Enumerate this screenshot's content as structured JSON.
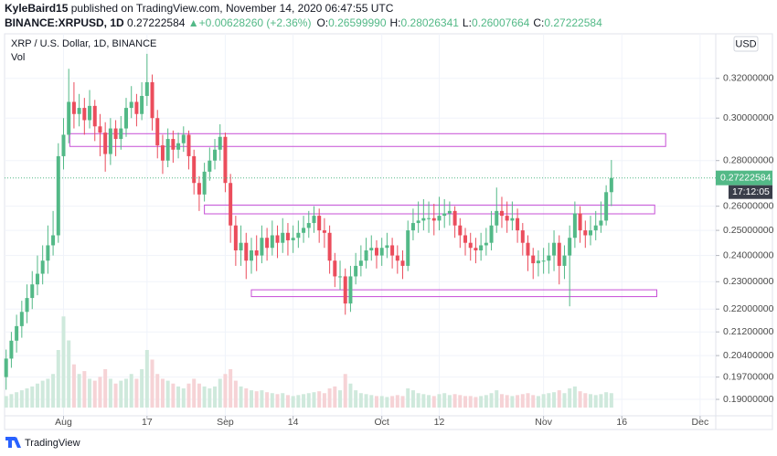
{
  "header": {
    "author": "KyleBaird15",
    "published": "published on TradingView.com, November 14, 2020 06:47:55 UTC",
    "symbol": "BINANCE:XRPUSD, 1D",
    "last": "0.27222584",
    "arrow": "▲",
    "change": "+0.00628260 (+2.36%)",
    "quote": [
      {
        "label": "O:",
        "value": "0.26599990"
      },
      {
        "label": "H:",
        "value": "0.28026341"
      },
      {
        "label": "L:",
        "value": "0.26007664"
      },
      {
        "label": "C:",
        "value": "0.27222584"
      }
    ]
  },
  "footer": {
    "brand": "TradingView"
  },
  "chart_data": {
    "type": "candlestick",
    "title": "XRP / U.S. Dollar, 1D, BINANCE",
    "volume_label": "Vol",
    "currency": "USD",
    "countdown": "17:12:05",
    "yscale": "log",
    "grid": true,
    "up_color": "#53b987",
    "down_color": "#eb4d5c",
    "volume_up_color": "#cfe9dc",
    "volume_down_color": "#f6d3d6",
    "drawing_color": "#c74fd6",
    "xlim": [
      -0.3,
      136
    ],
    "ylim": [
      0.185,
      0.344
    ],
    "vlim": [
      0,
      100
    ],
    "xticks": [
      {
        "value": 11,
        "label": "Aug"
      },
      {
        "value": 27,
        "label": "17"
      },
      {
        "value": 42,
        "label": "Sep"
      },
      {
        "value": 55,
        "label": "14"
      },
      {
        "value": 72,
        "label": "Oct"
      },
      {
        "value": 83,
        "label": "12"
      },
      {
        "value": 103,
        "label": "Nov"
      },
      {
        "value": 118,
        "label": "16"
      },
      {
        "value": 133,
        "label": "Dec"
      }
    ],
    "yticks": [
      {
        "value": 0.32,
        "label": "0.32000000"
      },
      {
        "value": 0.3,
        "label": "0.30000000"
      },
      {
        "value": 0.28,
        "label": "0.28000000"
      },
      {
        "value": 0.26,
        "label": "0.26000000"
      },
      {
        "value": 0.25,
        "label": "0.25000000"
      },
      {
        "value": 0.24,
        "label": "0.24000000"
      },
      {
        "value": 0.23,
        "label": "0.23000000"
      },
      {
        "value": 0.22,
        "label": "0.22000000"
      },
      {
        "value": 0.212,
        "label": "0.21200000"
      },
      {
        "value": 0.204,
        "label": "0.20400000"
      },
      {
        "value": 0.197,
        "label": "0.19700000"
      },
      {
        "value": 0.19,
        "label": "0.19000000"
      }
    ],
    "open": [
      0.197,
      0.203,
      0.209,
      0.214,
      0.219,
      0.224,
      0.229,
      0.233,
      0.238,
      0.244,
      0.248,
      0.282,
      0.292,
      0.308,
      0.302,
      0.305,
      0.299,
      0.306,
      0.296,
      0.293,
      0.283,
      0.295,
      0.29,
      0.295,
      0.305,
      0.308,
      0.302,
      0.311,
      0.318,
      0.3,
      0.287,
      0.28,
      0.29,
      0.285,
      0.288,
      0.292,
      0.282,
      0.27,
      0.265,
      0.275,
      0.28,
      0.285,
      0.291,
      0.27,
      0.252,
      0.242,
      0.245,
      0.238,
      0.242,
      0.24,
      0.247,
      0.243,
      0.248,
      0.245,
      0.249,
      0.246,
      0.247,
      0.249,
      0.251,
      0.253,
      0.256,
      0.25,
      0.249,
      0.238,
      0.232,
      0.232,
      0.222,
      0.232,
      0.236,
      0.238,
      0.242,
      0.243,
      0.24,
      0.243,
      0.244,
      0.24,
      0.238,
      0.236,
      0.25,
      0.253,
      0.254,
      0.255,
      0.255,
      0.254,
      0.256,
      0.257,
      0.258,
      0.252,
      0.248,
      0.245,
      0.243,
      0.242,
      0.244,
      0.245,
      0.252,
      0.258,
      0.256,
      0.254,
      0.255,
      0.25,
      0.245,
      0.24,
      0.237,
      0.238,
      0.238,
      0.24,
      0.245,
      0.236,
      0.24,
      0.247,
      0.257,
      0.25,
      0.248,
      0.25,
      0.252,
      0.254,
      0.2659999
    ],
    "high": [
      0.206,
      0.212,
      0.218,
      0.223,
      0.229,
      0.234,
      0.24,
      0.244,
      0.252,
      0.258,
      0.288,
      0.3,
      0.325,
      0.318,
      0.312,
      0.31,
      0.314,
      0.309,
      0.302,
      0.298,
      0.3,
      0.299,
      0.301,
      0.31,
      0.316,
      0.312,
      0.318,
      0.333,
      0.322,
      0.304,
      0.292,
      0.295,
      0.294,
      0.293,
      0.296,
      0.294,
      0.285,
      0.273,
      0.279,
      0.286,
      0.29,
      0.297,
      0.293,
      0.274,
      0.256,
      0.252,
      0.249,
      0.247,
      0.248,
      0.252,
      0.251,
      0.254,
      0.252,
      0.255,
      0.253,
      0.252,
      0.254,
      0.256,
      0.258,
      0.26,
      0.259,
      0.255,
      0.252,
      0.241,
      0.238,
      0.235,
      0.236,
      0.241,
      0.244,
      0.247,
      0.248,
      0.246,
      0.247,
      0.249,
      0.247,
      0.244,
      0.242,
      0.254,
      0.259,
      0.262,
      0.263,
      0.262,
      0.261,
      0.264,
      0.263,
      0.262,
      0.26,
      0.255,
      0.251,
      0.249,
      0.247,
      0.249,
      0.251,
      0.258,
      0.268,
      0.264,
      0.262,
      0.262,
      0.259,
      0.253,
      0.248,
      0.243,
      0.242,
      0.243,
      0.245,
      0.25,
      0.248,
      0.244,
      0.252,
      0.262,
      0.26,
      0.254,
      0.256,
      0.258,
      0.262,
      0.269,
      0.28026341
    ],
    "low": [
      0.193,
      0.2,
      0.205,
      0.21,
      0.215,
      0.22,
      0.225,
      0.229,
      0.233,
      0.24,
      0.245,
      0.276,
      0.288,
      0.295,
      0.296,
      0.292,
      0.295,
      0.289,
      0.282,
      0.275,
      0.278,
      0.282,
      0.285,
      0.291,
      0.3,
      0.296,
      0.299,
      0.306,
      0.294,
      0.281,
      0.274,
      0.277,
      0.279,
      0.281,
      0.284,
      0.276,
      0.265,
      0.258,
      0.262,
      0.271,
      0.276,
      0.28,
      0.266,
      0.245,
      0.236,
      0.236,
      0.231,
      0.233,
      0.234,
      0.237,
      0.238,
      0.24,
      0.239,
      0.241,
      0.24,
      0.241,
      0.243,
      0.245,
      0.247,
      0.249,
      0.245,
      0.243,
      0.233,
      0.228,
      0.227,
      0.218,
      0.219,
      0.229,
      0.232,
      0.235,
      0.238,
      0.235,
      0.236,
      0.239,
      0.235,
      0.233,
      0.231,
      0.234,
      0.246,
      0.249,
      0.25,
      0.249,
      0.248,
      0.25,
      0.251,
      0.252,
      0.247,
      0.243,
      0.24,
      0.238,
      0.237,
      0.238,
      0.24,
      0.242,
      0.249,
      0.251,
      0.249,
      0.25,
      0.245,
      0.24,
      0.234,
      0.231,
      0.232,
      0.233,
      0.233,
      0.234,
      0.229,
      0.231,
      0.221,
      0.243,
      0.245,
      0.243,
      0.244,
      0.246,
      0.249,
      0.252,
      0.26007664
    ],
    "close": [
      0.203,
      0.209,
      0.214,
      0.219,
      0.224,
      0.229,
      0.233,
      0.238,
      0.244,
      0.248,
      0.282,
      0.292,
      0.308,
      0.302,
      0.305,
      0.299,
      0.306,
      0.296,
      0.293,
      0.283,
      0.295,
      0.29,
      0.295,
      0.305,
      0.308,
      0.302,
      0.311,
      0.318,
      0.3,
      0.287,
      0.28,
      0.29,
      0.285,
      0.288,
      0.292,
      0.282,
      0.27,
      0.265,
      0.275,
      0.28,
      0.285,
      0.291,
      0.27,
      0.252,
      0.242,
      0.245,
      0.238,
      0.242,
      0.24,
      0.247,
      0.243,
      0.248,
      0.245,
      0.249,
      0.246,
      0.247,
      0.249,
      0.251,
      0.253,
      0.256,
      0.25,
      0.249,
      0.238,
      0.232,
      0.232,
      0.222,
      0.232,
      0.236,
      0.238,
      0.242,
      0.243,
      0.24,
      0.243,
      0.244,
      0.24,
      0.238,
      0.236,
      0.25,
      0.253,
      0.254,
      0.255,
      0.255,
      0.254,
      0.256,
      0.257,
      0.258,
      0.252,
      0.248,
      0.245,
      0.243,
      0.242,
      0.244,
      0.245,
      0.252,
      0.258,
      0.256,
      0.254,
      0.255,
      0.25,
      0.245,
      0.24,
      0.237,
      0.238,
      0.238,
      0.24,
      0.245,
      0.236,
      0.24,
      0.247,
      0.257,
      0.25,
      0.248,
      0.25,
      0.252,
      0.254,
      0.266,
      0.27222584
    ],
    "volume": [
      12,
      14,
      16,
      18,
      20,
      22,
      25,
      28,
      30,
      35,
      60,
      95,
      70,
      45,
      35,
      38,
      30,
      28,
      32,
      40,
      30,
      25,
      28,
      30,
      35,
      30,
      40,
      60,
      50,
      35,
      30,
      28,
      25,
      22,
      20,
      25,
      30,
      25,
      22,
      20,
      22,
      30,
      35,
      40,
      28,
      22,
      20,
      18,
      17,
      18,
      16,
      15,
      14,
      15,
      13,
      12,
      13,
      14,
      15,
      16,
      17,
      15,
      20,
      22,
      18,
      35,
      25,
      18,
      15,
      14,
      13,
      12,
      12,
      11,
      12,
      13,
      12,
      20,
      18,
      15,
      14,
      13,
      12,
      14,
      15,
      13,
      14,
      13,
      12,
      12,
      11,
      12,
      13,
      15,
      18,
      14,
      13,
      12,
      13,
      14,
      15,
      13,
      12,
      14,
      15,
      16,
      18,
      15,
      20,
      22,
      17,
      15,
      14,
      13,
      14,
      16,
      15
    ],
    "drawings": [
      {
        "x": [
          12.2,
          126.4
        ],
        "y": [
          0.2865,
          0.2925
        ]
      },
      {
        "x": [
          38,
          124.3
        ],
        "y": [
          0.2568,
          0.2605
        ]
      },
      {
        "x": [
          47,
          124.7
        ],
        "y": [
          0.2245,
          0.227
        ]
      }
    ]
  }
}
